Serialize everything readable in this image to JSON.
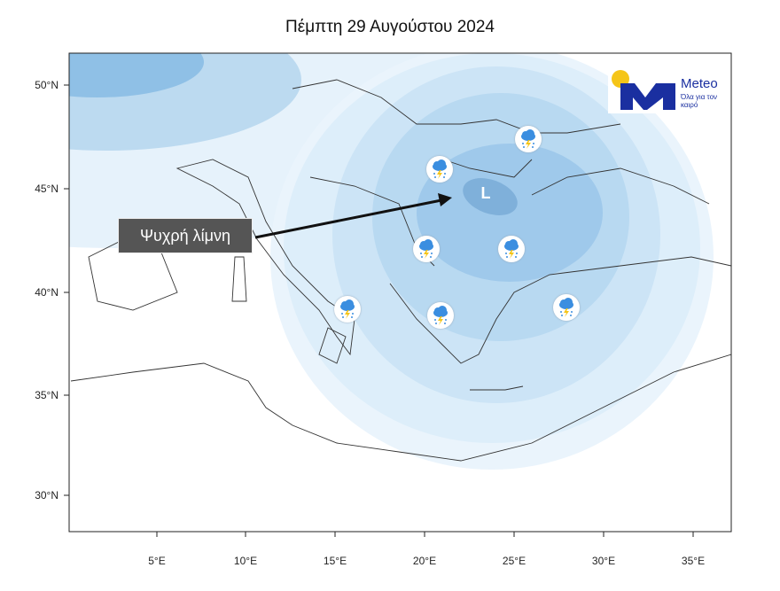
{
  "title": "Πέμπτη 29 Αυγούστου 2024",
  "annotation": {
    "label": "Ψυχρή λίμνη",
    "low_symbol": "L"
  },
  "logo": {
    "name": "Meteo",
    "tagline": "Όλα για τον καιρό"
  },
  "axes": {
    "lon_ticks": [
      "5°E",
      "10°E",
      "15°E",
      "20°E",
      "25°E",
      "30°E",
      "35°E"
    ],
    "lat_ticks": [
      "50°N",
      "45°N",
      "40°N",
      "35°N",
      "30°N"
    ]
  },
  "weather_icons": [
    {
      "icon": "thunderstorm-rain-icon",
      "place": "Hungary/Serbia"
    },
    {
      "icon": "thunderstorm-rain-icon",
      "place": "Moldova"
    },
    {
      "icon": "thunderstorm-rain-icon",
      "place": "North Macedonia"
    },
    {
      "icon": "thunderstorm-rain-icon",
      "place": "Bulgaria/Thrace"
    },
    {
      "icon": "thunderstorm-rain-icon",
      "place": "Calabria"
    },
    {
      "icon": "thunderstorm-rain-icon",
      "place": "Peloponnese"
    },
    {
      "icon": "thunderstorm-rain-icon",
      "place": "West Turkey"
    }
  ],
  "colors": {
    "low_core": "#7fb0da",
    "contour_fill": "#cfe6f6",
    "logo_blue": "#1a2fa0",
    "sun": "#f5c518"
  }
}
